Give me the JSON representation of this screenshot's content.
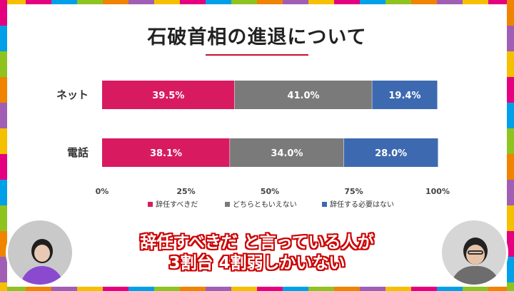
{
  "header": {
    "title": "石破首相の進退について"
  },
  "chart_data": {
    "type": "bar",
    "orientation": "horizontal",
    "stacked": true,
    "categories": [
      "ネット",
      "電話"
    ],
    "series": [
      {
        "name": "辞任すべきだ",
        "values": [
          39.5,
          38.1
        ],
        "color": "#d81b60"
      },
      {
        "name": "どちらともいえない",
        "values": [
          41.0,
          34.0
        ],
        "color": "#7a7a7a"
      },
      {
        "name": "辞任する必要はない",
        "values": [
          19.4,
          28.0
        ],
        "color": "#3d69b0"
      }
    ],
    "value_labels": [
      [
        "39.5%",
        "38.1%"
      ],
      [
        "41.0%",
        "34.0%"
      ],
      [
        "19.4%",
        "28.0%"
      ]
    ],
    "xticks": [
      "0%",
      "25%",
      "50%",
      "75%",
      "100%"
    ],
    "xlim": [
      0,
      100
    ],
    "legend_position": "bottom",
    "grid": false
  },
  "caption": {
    "line1": "辞任すべきだ と言っている人が",
    "line2": "3割台 4割弱しかいない"
  },
  "colors": {
    "accent": "#c8102e",
    "frame": [
      "#f5c000",
      "#e4007f",
      "#00a0e9",
      "#8fc31f",
      "#f08300",
      "#a05fb4"
    ]
  }
}
